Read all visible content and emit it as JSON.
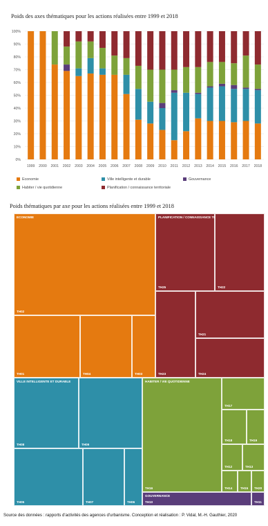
{
  "titles": {
    "bar": "Poids des axes thématiques pour les actions réalisées entre 1999 et 2018",
    "treemap": "Poids thématiques par axe pour les actions réalisées entre 1999 et 2018"
  },
  "chart_data": [
    {
      "type": "bar",
      "stacked": true,
      "title": "Poids des axes thématiques pour les actions réalisées entre 1999 et 2018",
      "categories": [
        "1999",
        "2000",
        "2001",
        "2002",
        "2003",
        "2004",
        "2005",
        "2006",
        "2007",
        "2008",
        "2009",
        "2010",
        "2011",
        "2012",
        "2013",
        "2014",
        "2015",
        "2016",
        "2017",
        "2018"
      ],
      "ylim": [
        0,
        100
      ],
      "yticks": [
        "0%",
        "10%",
        "20%",
        "30%",
        "40%",
        "50%",
        "60%",
        "70%",
        "80%",
        "90%",
        "100%"
      ],
      "grid": true,
      "legend_position": "bottom",
      "series": [
        {
          "name": "Economie",
          "color": "#e57a10",
          "values": [
            100,
            100,
            74,
            69,
            65,
            67,
            66,
            66,
            51,
            31,
            28,
            23,
            15,
            22,
            32,
            30,
            30,
            29,
            30,
            28
          ]
        },
        {
          "name": "Ville intelligente et durable",
          "color": "#2e8fa8",
          "values": [
            0,
            0,
            0,
            0,
            6,
            12,
            5,
            0,
            15,
            24,
            17,
            17,
            37,
            30,
            19,
            26,
            27,
            26,
            25,
            26
          ]
        },
        {
          "name": "Gouvernance",
          "color": "#5a3d7a",
          "values": [
            0,
            0,
            0,
            5,
            0,
            0,
            0,
            0,
            0,
            0,
            0,
            4,
            2,
            0,
            1,
            1,
            2,
            3,
            1,
            1
          ]
        },
        {
          "name": "Habiter / vie quotidienne",
          "color": "#7ea23a",
          "values": [
            0,
            0,
            26,
            14,
            21,
            13,
            16,
            15,
            13,
            18,
            25,
            26,
            16,
            20,
            20,
            19,
            17,
            17,
            25,
            19
          ]
        },
        {
          "name": "Planification / connaissance territoriale",
          "color": "#8e2a2f",
          "values": [
            0,
            0,
            0,
            12,
            8,
            8,
            13,
            19,
            21,
            27,
            30,
            30,
            30,
            28,
            28,
            24,
            24,
            25,
            19,
            26
          ]
        }
      ]
    },
    {
      "type": "treemap",
      "title": "Poids thématiques par axe pour les actions réalisées entre 1999 et 2018",
      "groups": [
        {
          "name": "ECONOMIE",
          "color": "#e57a10",
          "items": [
            "TH02",
            "TH01",
            "TH04",
            "TH03"
          ]
        },
        {
          "name": "PLANIFICATION / CONNAISSANCE TERRITORIALE",
          "color": "#8e2a2f",
          "items": [
            "TH25",
            "TH22",
            "TH21",
            "TH23",
            "TH24"
          ]
        },
        {
          "name": "VILLE INTELLIGENTE ET DURABLE",
          "color": "#2e8fa8",
          "items": [
            "TH08",
            "TH09",
            "TH05",
            "TH07",
            "TH06"
          ]
        },
        {
          "name": "HABITER / VIE QUOTIDIENNE",
          "color": "#7ea23a",
          "items": [
            "TH17",
            "TH18",
            "TH19",
            "TH12",
            "TH13",
            "TH14",
            "TH15",
            "TH20",
            "TH16"
          ]
        },
        {
          "name": "GOUVERNANCE",
          "color": "#5a3d7a",
          "items": [
            "TH10",
            "TH11"
          ]
        }
      ]
    }
  ],
  "source": "Source des données : rapports d'activités des agences d'urbanisme. Conception et réalisation : P. Vidal, M.-H. Gauthier, 2020"
}
